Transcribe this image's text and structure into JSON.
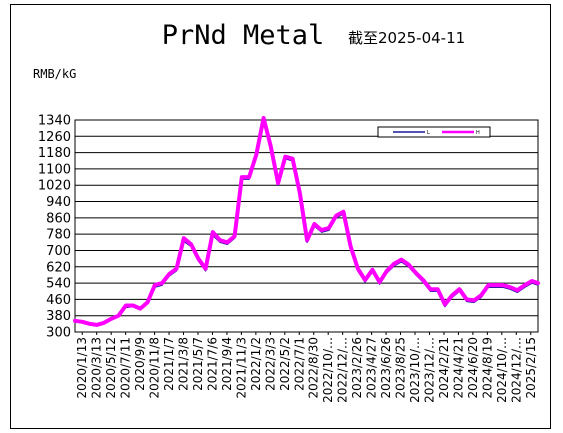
{
  "chart_data": {
    "type": "line",
    "title": "PrNd Metal",
    "subtitle": "截至2025-04-11",
    "ylabel": "RMB/kG",
    "xlabel": "",
    "ylim": [
      300,
      1340
    ],
    "yticks": [
      300,
      380,
      460,
      540,
      620,
      700,
      780,
      860,
      940,
      1020,
      1100,
      1180,
      1260,
      1340
    ],
    "xticks": [
      "2020/1/13",
      "2020/3/13",
      "2020/5/12",
      "2020/7/11",
      "2020/9/9",
      "2020/11/8",
      "2021/1/7",
      "2021/3/8",
      "2021/5/7",
      "2021/7/6",
      "2021/9/4",
      "2021/11/3",
      "2022/1/2",
      "2022/3/3",
      "2022/5/2",
      "2022/7/1",
      "2022/8/30",
      "2022/10/…",
      "2022/12/…",
      "2023/2/26",
      "2023/4/27",
      "2023/6/26",
      "2023/8/25",
      "2023/10/…",
      "2023/12/…",
      "2024/2/21",
      "2024/4/21",
      "2024/6/20",
      "2024/8/19",
      "2024/10/…",
      "2024/12/…",
      "2025/2/15"
    ],
    "grid": true,
    "legend_position": "top-right",
    "legend": [
      "L",
      "H"
    ],
    "series": [
      {
        "name": "L",
        "color": "#1a1aa0",
        "x": [
          "2020/1/13",
          "2020/2/12",
          "2020/3/13",
          "2020/4/12",
          "2020/5/12",
          "2020/6/11",
          "2020/7/11",
          "2020/8/10",
          "2020/9/9",
          "2020/10/9",
          "2020/11/8",
          "2020/12/8",
          "2021/1/7",
          "2021/2/6",
          "2021/3/8",
          "2021/4/7",
          "2021/5/7",
          "2021/6/6",
          "2021/7/6",
          "2021/8/5",
          "2021/9/4",
          "2021/10/4",
          "2021/11/3",
          "2021/12/3",
          "2022/1/2",
          "2022/2/1",
          "2022/3/3",
          "2022/4/2",
          "2022/5/2",
          "2022/6/1",
          "2022/7/1",
          "2022/7/31",
          "2022/8/30",
          "2022/9/29",
          "2022/10/29",
          "2022/11/28",
          "2022/12/28",
          "2023/1/27",
          "2023/2/26",
          "2023/3/28",
          "2023/4/27",
          "2023/5/27",
          "2023/6/26",
          "2023/7/26",
          "2023/8/25",
          "2023/9/24",
          "2023/10/24",
          "2023/11/23",
          "2023/12/23",
          "2024/1/22",
          "2024/2/21",
          "2024/3/22",
          "2024/4/21",
          "2024/5/21",
          "2024/6/20",
          "2024/7/20",
          "2024/8/19",
          "2024/9/18",
          "2024/10/18",
          "2024/11/17",
          "2024/12/17",
          "2025/1/16",
          "2025/2/15",
          "2025/3/17",
          "2025/4/11"
        ],
        "values": [
          350,
          345,
          335,
          330,
          340,
          360,
          375,
          420,
          425,
          410,
          440,
          520,
          530,
          575,
          600,
          745,
          720,
          650,
          600,
          775,
          740,
          730,
          760,
          1050,
          1050,
          1160,
          1340,
          1200,
          1020,
          1150,
          1140,
          970,
          740,
          820,
          790,
          800,
          860,
          880,
          710,
          600,
          545,
          595,
          535,
          590,
          625,
          645,
          620,
          580,
          545,
          500,
          500,
          425,
          470,
          500,
          450,
          445,
          470,
          520,
          520,
          520,
          510,
          495,
          520,
          540,
          530
        ]
      },
      {
        "name": "H",
        "color": "#ff00ff",
        "x": [
          "2020/1/13",
          "2020/2/12",
          "2020/3/13",
          "2020/4/12",
          "2020/5/12",
          "2020/6/11",
          "2020/7/11",
          "2020/8/10",
          "2020/9/9",
          "2020/10/9",
          "2020/11/8",
          "2020/12/8",
          "2021/1/7",
          "2021/2/6",
          "2021/3/8",
          "2021/4/7",
          "2021/5/7",
          "2021/6/6",
          "2021/7/6",
          "2021/8/5",
          "2021/9/4",
          "2021/10/4",
          "2021/11/3",
          "2021/12/3",
          "2022/1/2",
          "2022/2/1",
          "2022/3/3",
          "2022/4/2",
          "2022/5/2",
          "2022/6/1",
          "2022/7/1",
          "2022/7/31",
          "2022/8/30",
          "2022/9/29",
          "2022/10/29",
          "2022/11/28",
          "2022/12/28",
          "2023/1/27",
          "2023/2/26",
          "2023/3/28",
          "2023/4/27",
          "2023/5/27",
          "2023/6/26",
          "2023/7/26",
          "2023/8/25",
          "2023/9/24",
          "2023/10/24",
          "2023/11/23",
          "2023/12/23",
          "2024/1/22",
          "2024/2/21",
          "2024/3/22",
          "2024/4/21",
          "2024/5/21",
          "2024/6/20",
          "2024/7/20",
          "2024/8/19",
          "2024/9/18",
          "2024/10/18",
          "2024/11/17",
          "2024/12/17",
          "2025/1/16",
          "2025/2/15",
          "2025/3/17",
          "2025/4/11"
        ],
        "values": [
          355,
          350,
          340,
          335,
          345,
          365,
          380,
          430,
          430,
          415,
          445,
          530,
          540,
          585,
          610,
          760,
          730,
          660,
          610,
          790,
          750,
          740,
          770,
          1060,
          1060,
          1170,
          1350,
          1210,
          1030,
          1160,
          1150,
          980,
          750,
          830,
          800,
          810,
          870,
          890,
          720,
          610,
          555,
          605,
          545,
          600,
          635,
          655,
          630,
          590,
          555,
          510,
          510,
          435,
          480,
          510,
          460,
          455,
          480,
          530,
          530,
          530,
          520,
          505,
          530,
          550,
          540
        ]
      }
    ]
  }
}
